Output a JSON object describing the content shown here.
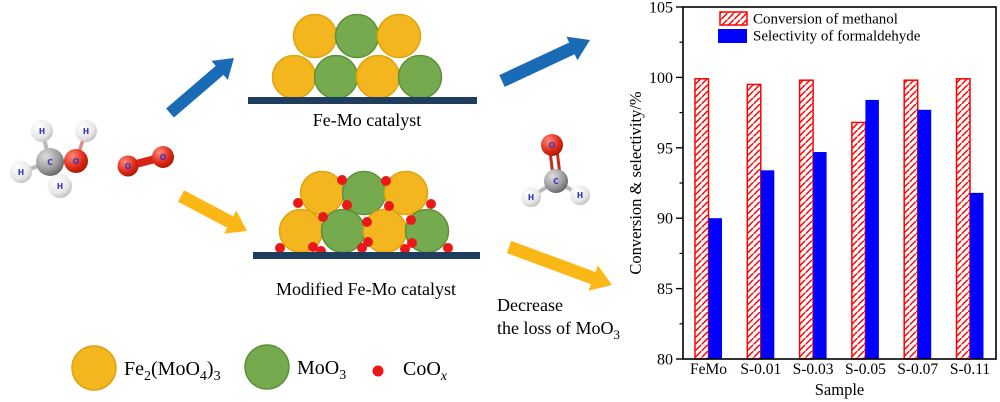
{
  "illustration": {
    "captions": {
      "femo": "Fe-Mo catalyst",
      "modified": "Modified Fe-Mo catalyst",
      "decrease_line1": "Decrease",
      "decrease_line2_text": "the loss of MoO",
      "decrease_line2_sub": "3"
    },
    "atom_labels": {
      "methanol": [
        "H",
        "H",
        "H",
        "H",
        "C",
        "O"
      ],
      "oxygen": [
        "O",
        "O"
      ],
      "formaldehyde": [
        "O",
        "C",
        "H",
        "H"
      ]
    },
    "legend": {
      "fe2moo43": {
        "t1": "Fe",
        "s1": "2",
        "t2": "(MoO",
        "s2": "4",
        "t3": ")",
        "s3": "3"
      },
      "moo3": {
        "t1": "MoO",
        "s1": "3"
      },
      "coox": {
        "t1": "CoO",
        "s1": "x"
      }
    },
    "colors": {
      "yellow_particle": "#F4B61E",
      "yellow_particle_edge": "#DFA40D",
      "green_particle": "#75AB4E",
      "green_particle_edge": "#5F9138",
      "red_dot": "#EA1917",
      "support_bar": "#1F3D5C",
      "blue_arrow": "#1A6BB5",
      "yellow_arrow": "#FBB715"
    }
  },
  "chart_data": {
    "type": "bar",
    "title": "",
    "xlabel": "Sample",
    "ylabel": "Conversion & selectivity/%",
    "ylim": [
      80,
      105
    ],
    "yticks": [
      80,
      85,
      90,
      95,
      100,
      105
    ],
    "minor_yticks": [
      82.5,
      87.5,
      92.5,
      97.5,
      102.5
    ],
    "categories": [
      "FeMo",
      "S-0.01",
      "S-0.03",
      "S-0.05",
      "S-0.07",
      "S-0.11"
    ],
    "series": [
      {
        "name": "Conversion of methanol",
        "style": "hatched",
        "color": "#FF0000",
        "values": [
          99.9,
          99.5,
          99.8,
          96.8,
          99.8,
          99.9
        ]
      },
      {
        "name": "Selectivity of formaldehyde",
        "style": "solid",
        "color": "#0000FF",
        "values": [
          90.0,
          93.4,
          94.7,
          98.4,
          97.7,
          91.8
        ]
      }
    ],
    "legend_position": "top-left-inside",
    "grid": false
  }
}
